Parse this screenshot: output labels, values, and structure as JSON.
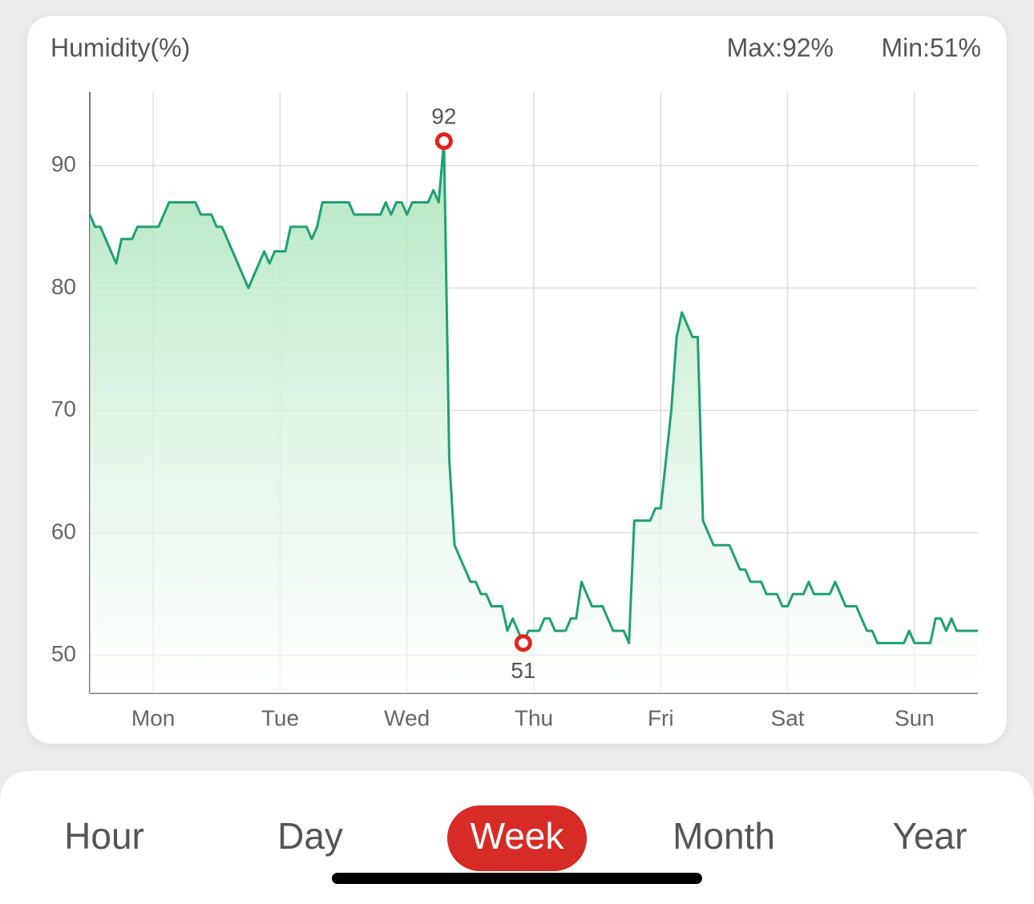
{
  "chart_data": {
    "type": "line",
    "title": "Humidity(%)",
    "summary": [
      "Max:92%",
      "Min:51%"
    ],
    "x": [
      -12,
      -11,
      -10,
      -7,
      -6,
      -4,
      -3,
      1,
      3,
      8,
      9,
      11,
      12,
      13,
      18,
      21,
      22,
      23,
      25,
      26,
      29,
      30,
      31,
      32,
      37,
      38,
      43,
      44,
      45,
      46,
      47,
      48,
      49,
      52,
      53,
      54,
      55,
      56,
      57,
      60,
      61,
      62,
      63,
      64,
      66,
      67,
      68,
      70,
      71,
      73,
      74,
      75,
      76,
      78,
      79,
      80,
      81,
      83,
      85,
      87,
      89,
      90,
      91,
      94,
      95,
      96,
      98,
      99,
      100,
      102,
      103,
      104,
      106,
      109,
      111,
      112,
      113,
      115,
      116,
      118,
      119,
      120,
      121,
      123,
      124,
      125,
      128,
      129,
      131,
      133,
      135,
      136,
      137,
      142,
      143,
      144,
      147,
      148,
      149,
      150,
      151,
      152,
      156
    ],
    "values": [
      86,
      85,
      85,
      82,
      84,
      84,
      85,
      85,
      87,
      87,
      86,
      86,
      85,
      85,
      80,
      83,
      82,
      83,
      83,
      85,
      85,
      84,
      85,
      87,
      87,
      86,
      86,
      87,
      86,
      87,
      87,
      86,
      87,
      87,
      88,
      87,
      92,
      66,
      59,
      56,
      56,
      55,
      55,
      54,
      54,
      52,
      53,
      51,
      52,
      52,
      53,
      53,
      52,
      52,
      53,
      53,
      56,
      54,
      54,
      52,
      52,
      51,
      61,
      61,
      62,
      62,
      70,
      76,
      78,
      76,
      76,
      61,
      59,
      59,
      57,
      57,
      56,
      56,
      55,
      55,
      54,
      54,
      55,
      55,
      56,
      55,
      55,
      56,
      54,
      54,
      52,
      52,
      51,
      51,
      52,
      51,
      51,
      53,
      53,
      52,
      53,
      52,
      52
    ],
    "color": "#1fa170",
    "xlim": [
      -12,
      156
    ],
    "xticks": [
      {
        "value": 0,
        "label": "Mon"
      },
      {
        "value": 24,
        "label": "Tue"
      },
      {
        "value": 48,
        "label": "Wed"
      },
      {
        "value": 72,
        "label": "Thu"
      },
      {
        "value": 96,
        "label": "Fri"
      },
      {
        "value": 120,
        "label": "Sat"
      },
      {
        "value": 144,
        "label": "Sun"
      }
    ],
    "ylim": [
      46.9,
      96
    ],
    "yticks": [
      50,
      60,
      70,
      80,
      90
    ],
    "grid": true,
    "max_point": {
      "x": 55,
      "y": 92
    },
    "min_point": {
      "x": 70,
      "y": 51
    },
    "marker_color": "#e3221c"
  },
  "tabs": [
    "Hour",
    "Day",
    "Week",
    "Month",
    "Year"
  ],
  "active_tab": 2
}
